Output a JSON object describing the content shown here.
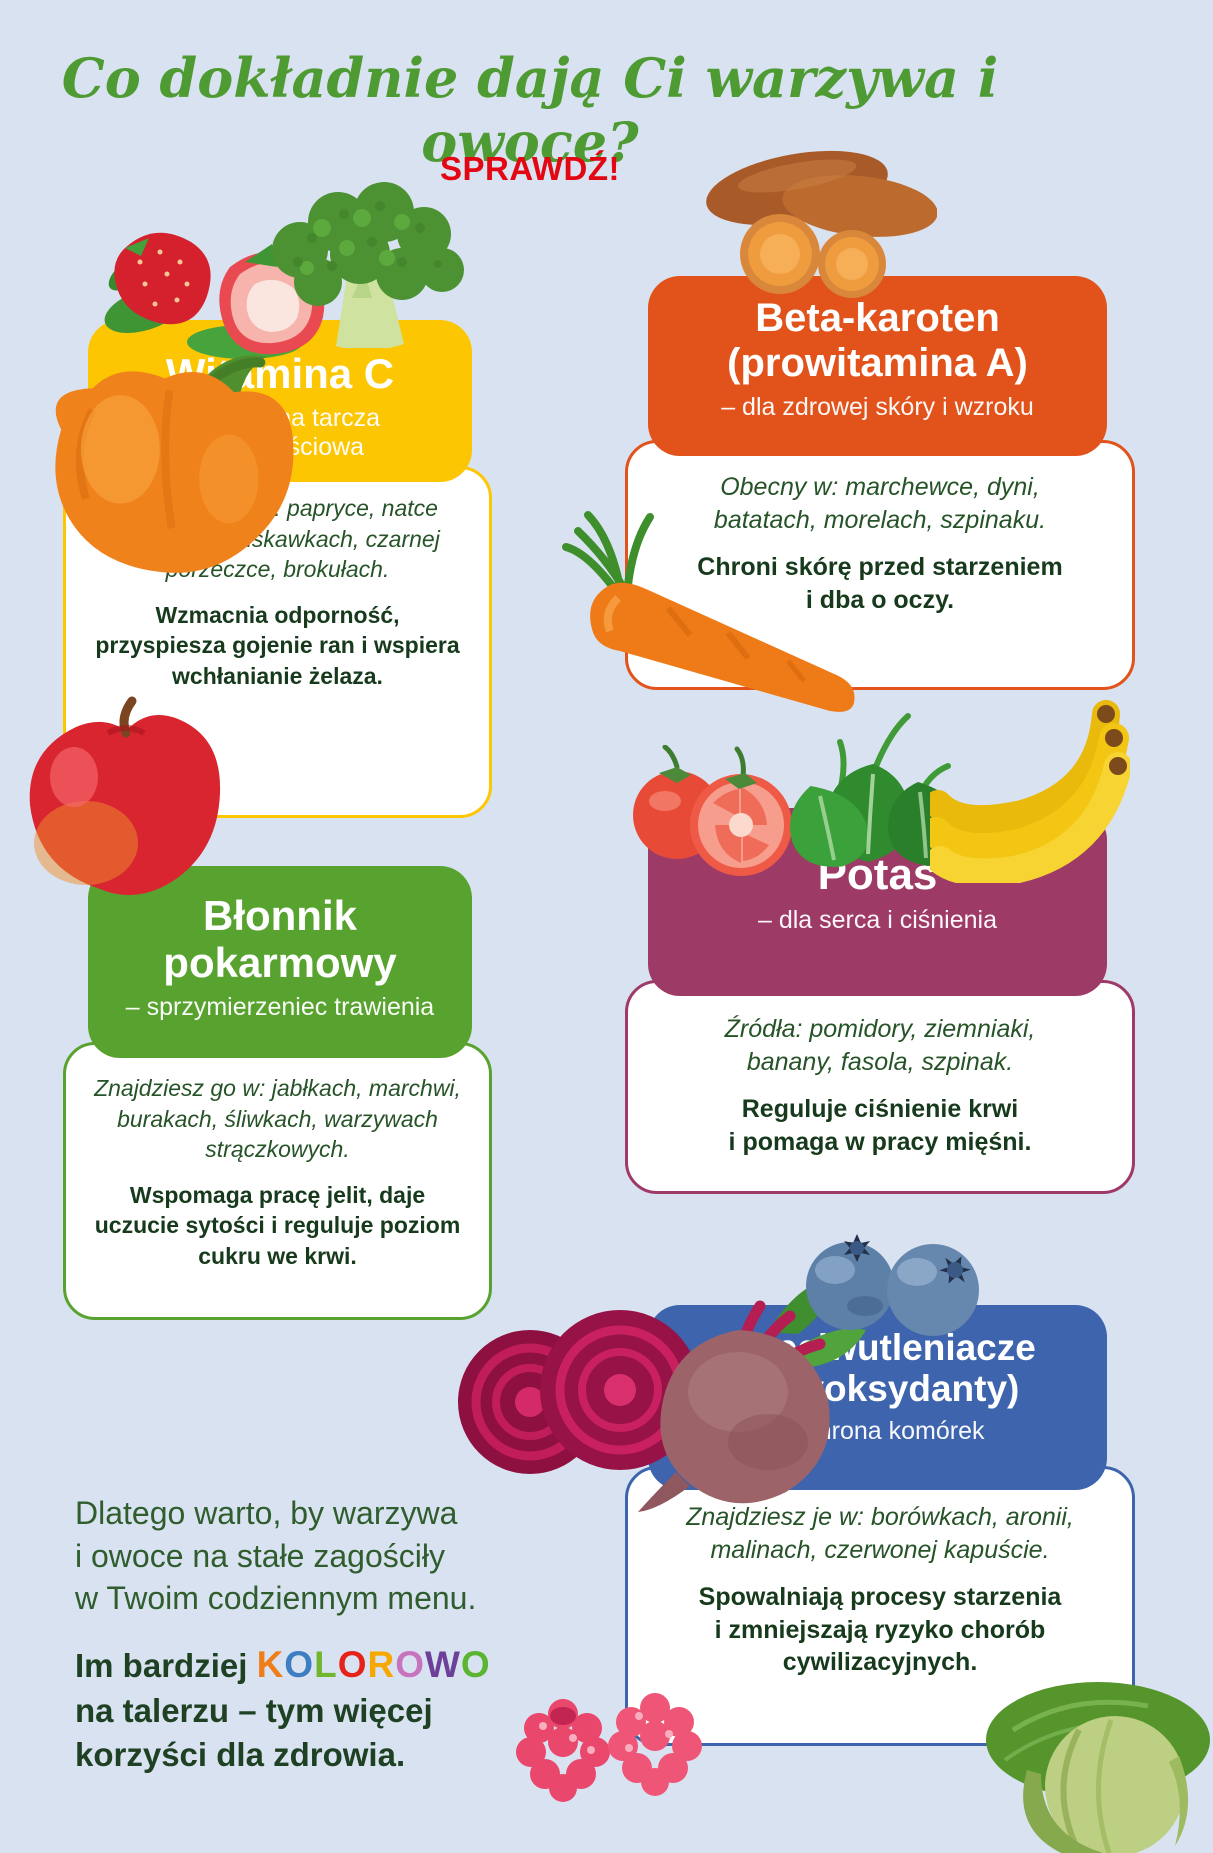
{
  "page": {
    "title": "Co dokładnie dają Ci warzywa i owoce?",
    "cta": "SPRAWDŹ!"
  },
  "palette": {
    "background": "#d9e2f0",
    "title_green": "#4f9b33",
    "cta_red": "#e30613",
    "sources_text": "#265327",
    "benefit_text": "#173a1c",
    "footer_text": "#2f5d2e",
    "footer_bold_text": "#1e4023"
  },
  "cards": [
    {
      "name": "witamina-c",
      "title": "Witamina C",
      "subtitle": "– naturalna tarcza\nodpornościowa",
      "sources": "Znajdziesz ją w: papryce, natce\npietruszki, truskawkach, czarnej\nporzeczce, brokułach.",
      "benefit": "Wzmacnia odporność,\nprzyspiesza gojenie ran i wspiera\nwchłanianie żelaza.",
      "header_color": "#fdc603"
    },
    {
      "name": "beta-karoten",
      "title": "Beta-karoten\n(prowitamina A)",
      "subtitle": "– dla zdrowej skóry i wzroku",
      "sources": "Obecny w: marchewce, dyni,\nbatatach, morelach, szpinaku.",
      "benefit": "Chroni skórę przed starzeniem\ni dba o oczy.",
      "header_color": "#e2521b"
    },
    {
      "name": "blonnik-pokarmowy",
      "title": "Błonnik\npokarmowy",
      "subtitle": "– sprzymierzeniec trawienia",
      "sources": "Znajdziesz go w: jabłkach, marchwi,\nburakach, śliwkach, warzywach\nstrączkowych.",
      "benefit": "Wspomaga pracę jelit, daje\nuczucie sytości i reguluje poziom\ncukru we krwi.",
      "header_color": "#58a32f"
    },
    {
      "name": "potas",
      "title": "Potas",
      "subtitle": "– dla serca i ciśnienia",
      "sources": "Źródła: pomidory, ziemniaki,\nbanany, fasola, szpinak.",
      "benefit": "Reguluje ciśnienie krwi\ni pomaga w pracy mięśni.",
      "header_color": "#9e3a66"
    },
    {
      "name": "przeciwutleniacze",
      "title": "Przeciwutleniacze\n(antyoksydanty)",
      "subtitle": "– ochrona komórek",
      "sources": "Znajdziesz je w: borówkach, aronii,\nmalinach, czerwonej kapuście.",
      "benefit": "Spowalniają procesy starzenia\ni zmniejszają ryzyko chorób\ncywilizacyjnych.",
      "header_color": "#3e64ad"
    }
  ],
  "illustrations": [
    "strawberries",
    "broccoli",
    "orange-bell-pepper",
    "sweet-potatoes",
    "carrot",
    "apple",
    "tomatoes",
    "spinach",
    "bananas",
    "beetroot",
    "blueberries",
    "raspberries",
    "cabbage"
  ],
  "footer": {
    "paragraph": "Dlatego warto, by warzywa\ni owoce na stałe zagościły\nw Twoim codziennym menu.",
    "bold_lead": "Im bardziej ",
    "kolorowo": [
      {
        "ch": "K",
        "color": "#ef7d1a"
      },
      {
        "ch": "O",
        "color": "#3d7dc1"
      },
      {
        "ch": "L",
        "color": "#71b62c"
      },
      {
        "ch": "O",
        "color": "#e6231b"
      },
      {
        "ch": "R",
        "color": "#f6a800"
      },
      {
        "ch": "O",
        "color": "#c873be"
      },
      {
        "ch": "W",
        "color": "#6c3f99"
      },
      {
        "ch": "O",
        "color": "#5bb531"
      }
    ],
    "bold_rest": "na talerzu – tym więcej\nkorzyści dla zdrowia."
  }
}
